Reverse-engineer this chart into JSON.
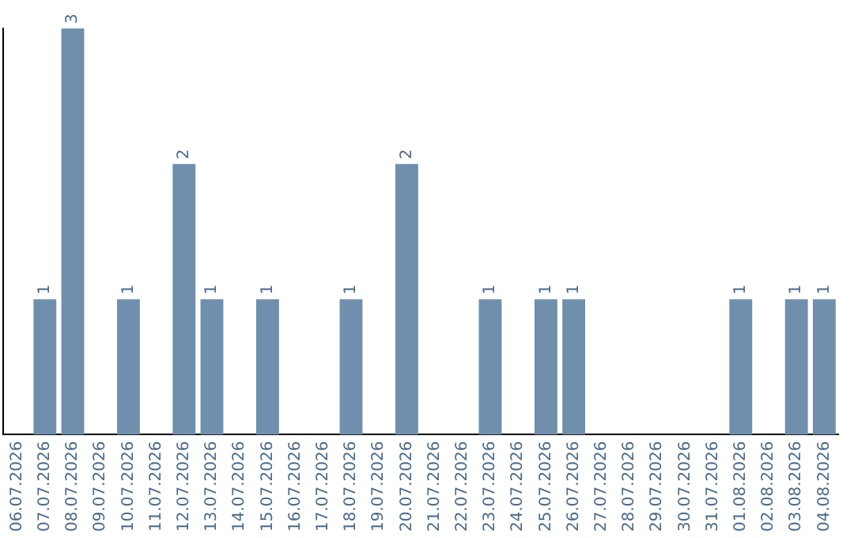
{
  "chart_data": {
    "type": "bar",
    "categories": [
      "06.07.2026",
      "07.07.2026",
      "08.07.2026",
      "09.07.2026",
      "10.07.2026",
      "11.07.2026",
      "12.07.2026",
      "13.07.2026",
      "14.07.2026",
      "15.07.2026",
      "16.07.2026",
      "17.07.2026",
      "18.07.2026",
      "19.07.2026",
      "20.07.2026",
      "21.07.2026",
      "22.07.2026",
      "23.07.2026",
      "24.07.2026",
      "25.07.2026",
      "26.07.2026",
      "27.07.2026",
      "28.07.2026",
      "29.07.2026",
      "30.07.2026",
      "31.07.2026",
      "01.08.2026",
      "02.08.2026",
      "03.08.2026",
      "04.08.2026"
    ],
    "values": [
      0,
      1,
      3,
      0,
      1,
      0,
      2,
      1,
      0,
      1,
      0,
      0,
      1,
      0,
      2,
      0,
      0,
      1,
      0,
      1,
      1,
      0,
      0,
      0,
      0,
      0,
      1,
      0,
      1,
      1
    ],
    "value_labels": [
      null,
      "1",
      "3",
      null,
      "1",
      null,
      "2",
      "1",
      null,
      "1",
      null,
      null,
      "1",
      null,
      "2",
      null,
      null,
      "1",
      null,
      "1",
      "1",
      null,
      null,
      null,
      null,
      null,
      "1",
      null,
      "1",
      "1"
    ],
    "color": "#6f8fad",
    "ylim": [
      0,
      3
    ],
    "grid": false,
    "legend": false,
    "tick_labels": "x"
  }
}
